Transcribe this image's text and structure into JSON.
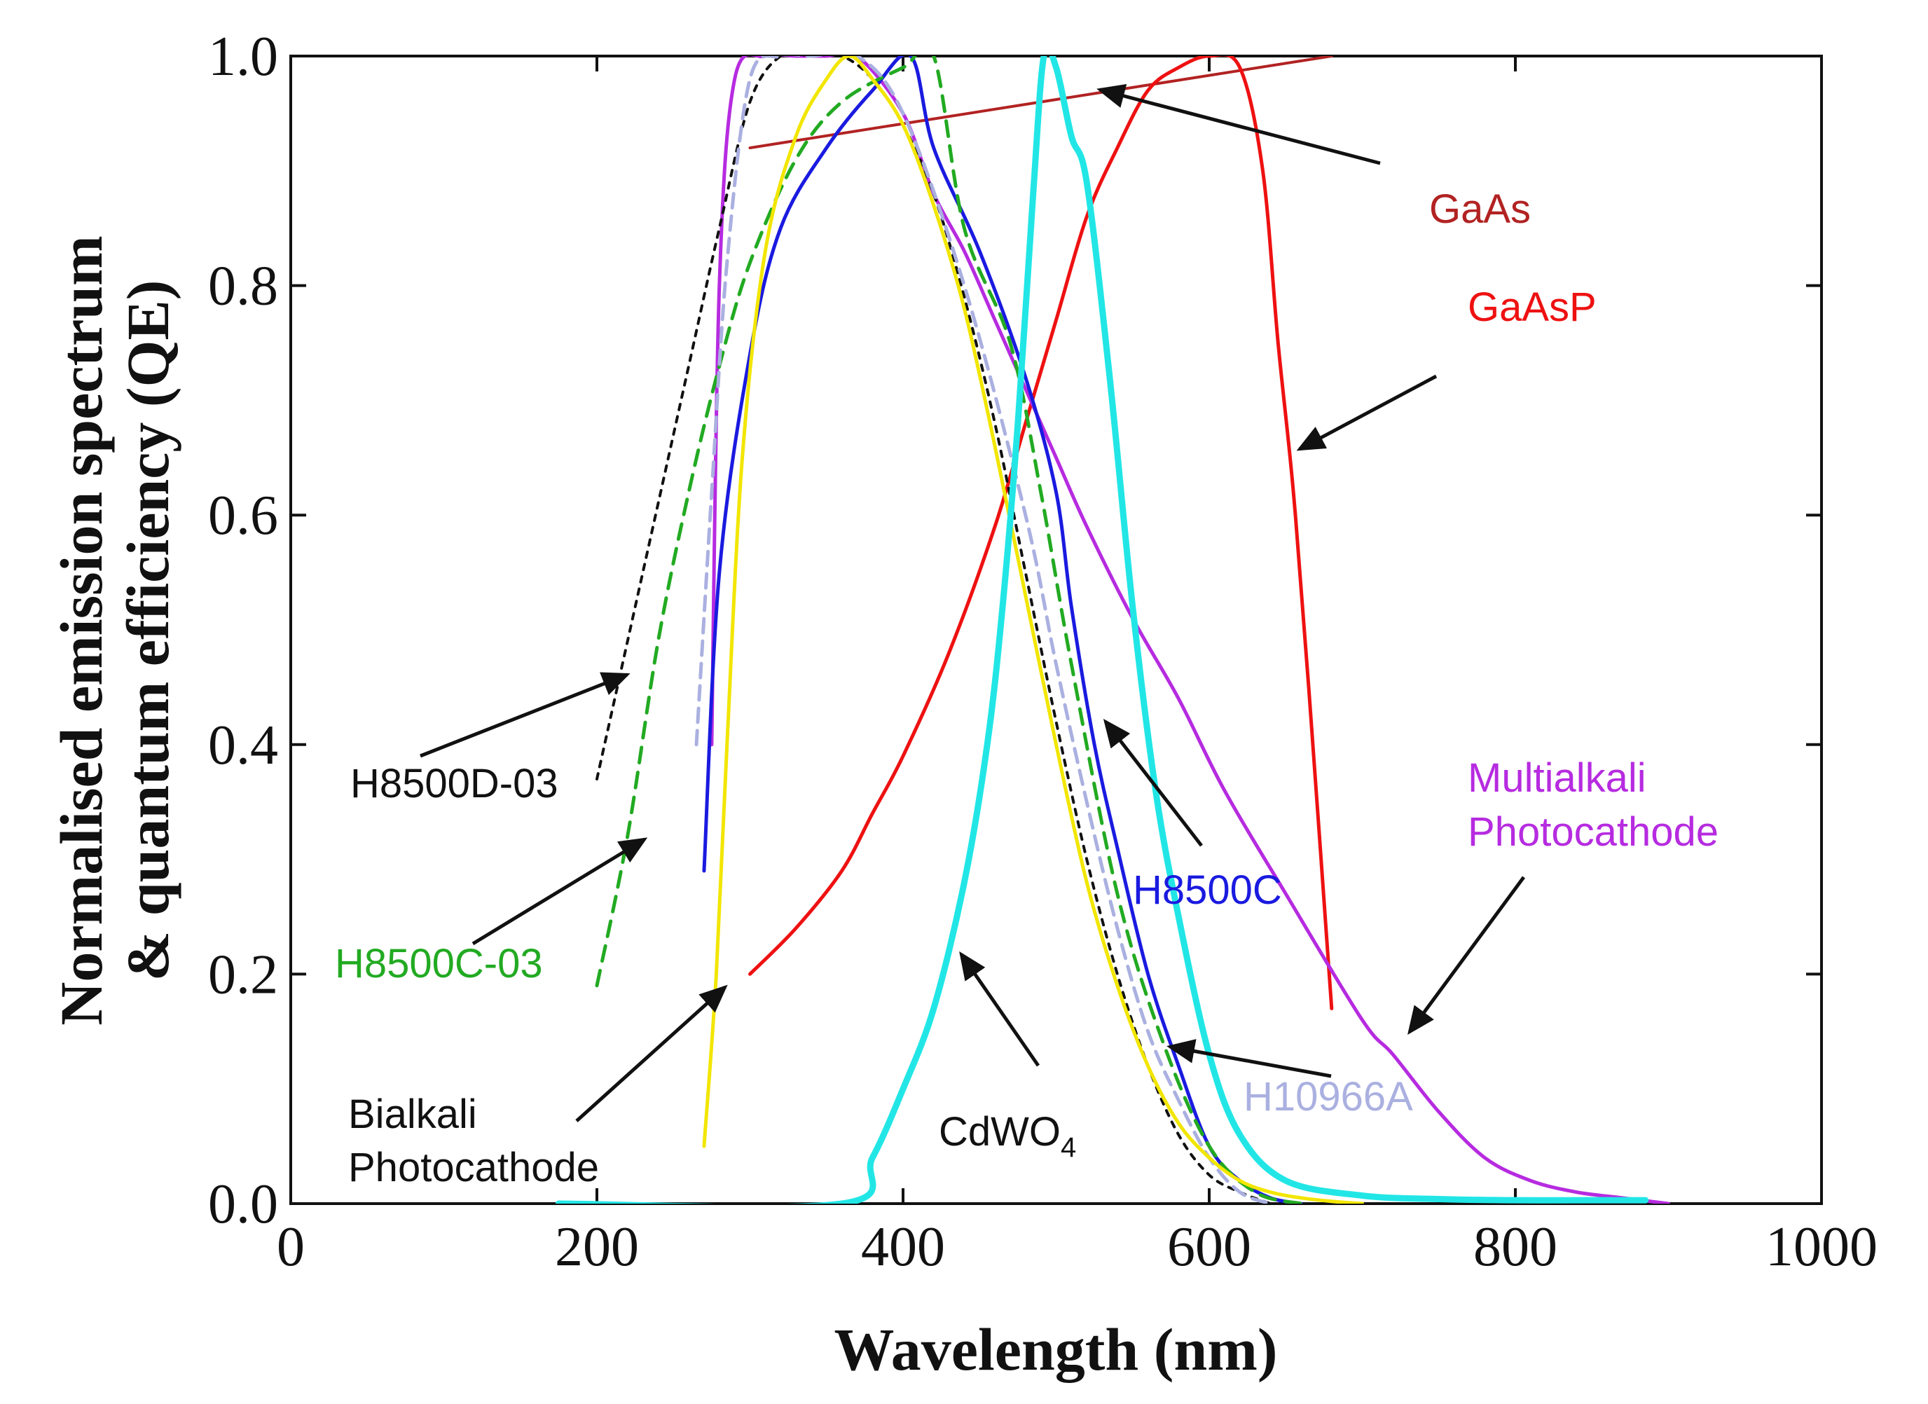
{
  "chart_data": {
    "type": "line",
    "title": "",
    "xlabel": "Wavelength (nm)",
    "ylabel_line1": "Normalised emission spectrum",
    "ylabel_line2": "& quantum efficiency (QE)",
    "xlim": [
      0,
      1000
    ],
    "ylim": [
      0,
      1
    ],
    "x_ticks": [
      "0",
      "200",
      "400",
      "600",
      "800",
      "1000"
    ],
    "y_ticks": [
      "0.0",
      "0.2",
      "0.4",
      "0.6",
      "0.8",
      "1.0"
    ],
    "grid": false,
    "legend": "none (series labelled directly with arrows)",
    "series": [
      {
        "name": "GaAs",
        "color": "#b22222",
        "width": 4,
        "dash": "",
        "x": [
          300,
          680
        ],
        "y": [
          0.92,
          1.0
        ]
      },
      {
        "name": "GaAsP",
        "color": "#ee1111",
        "width": 5,
        "dash": "",
        "x": [
          300,
          330,
          360,
          380,
          400,
          430,
          460,
          480,
          500,
          520,
          540,
          560,
          580,
          600,
          620,
          635,
          645,
          655,
          665,
          680
        ],
        "y": [
          0.2,
          0.24,
          0.29,
          0.34,
          0.39,
          0.48,
          0.59,
          0.68,
          0.77,
          0.86,
          0.92,
          0.97,
          0.99,
          1.0,
          0.99,
          0.9,
          0.75,
          0.62,
          0.45,
          0.17
        ]
      },
      {
        "name": "Multialkali Photocathode",
        "color": "#b62be0",
        "width": 5,
        "dash": "",
        "x": [
          275,
          280,
          290,
          310,
          330,
          350,
          370,
          400,
          420,
          440,
          460,
          480,
          500,
          520,
          550,
          580,
          610,
          650,
          700,
          720,
          750,
          780,
          810,
          840,
          870,
          900
        ],
        "y": [
          0.4,
          0.8,
          0.98,
          1.0,
          1.0,
          1.0,
          1.0,
          0.95,
          0.88,
          0.83,
          0.77,
          0.71,
          0.65,
          0.59,
          0.51,
          0.44,
          0.36,
          0.27,
          0.16,
          0.13,
          0.08,
          0.04,
          0.02,
          0.01,
          0.005,
          0.0
        ]
      },
      {
        "name": "H8500C",
        "color": "#1a1ae0",
        "width": 5,
        "dash": "",
        "x": [
          270,
          280,
          300,
          320,
          350,
          380,
          405,
          420,
          450,
          480,
          500,
          510,
          525,
          540,
          560,
          580,
          600,
          620,
          640,
          660
        ],
        "y": [
          0.29,
          0.55,
          0.74,
          0.85,
          0.92,
          0.97,
          1.0,
          0.92,
          0.83,
          0.72,
          0.62,
          0.52,
          0.4,
          0.31,
          0.2,
          0.12,
          0.05,
          0.02,
          0.005,
          0.0
        ]
      },
      {
        "name": "H8500C-03",
        "color": "#22aa22",
        "width": 5,
        "dash": "22,14",
        "x": [
          200,
          220,
          240,
          260,
          280,
          300,
          330,
          360,
          400,
          420,
          440,
          470,
          490,
          510,
          540,
          570,
          600,
          630,
          660
        ],
        "y": [
          0.19,
          0.32,
          0.49,
          0.62,
          0.73,
          0.82,
          0.91,
          0.96,
          0.99,
          1.0,
          0.85,
          0.75,
          0.62,
          0.47,
          0.27,
          0.14,
          0.05,
          0.01,
          0.0
        ]
      },
      {
        "name": "H8500D-03",
        "color": "#111111",
        "width": 4,
        "dash": "8,10",
        "x": [
          200,
          220,
          240,
          260,
          280,
          300,
          320,
          340,
          360,
          380,
          400,
          420,
          440,
          460,
          480,
          500,
          520,
          540,
          560,
          580,
          600,
          620,
          640
        ],
        "y": [
          0.37,
          0.49,
          0.61,
          0.73,
          0.85,
          0.96,
          1.0,
          1.0,
          1.0,
          0.98,
          0.94,
          0.88,
          0.79,
          0.68,
          0.55,
          0.42,
          0.3,
          0.2,
          0.12,
          0.06,
          0.025,
          0.01,
          0.0
        ]
      },
      {
        "name": "H10966A",
        "color": "#aab0e0",
        "width": 5,
        "dash": "20,12",
        "x": [
          265,
          275,
          285,
          300,
          320,
          340,
          370,
          400,
          440,
          480,
          500,
          520,
          540,
          560,
          580,
          600,
          620,
          640
        ],
        "y": [
          0.4,
          0.62,
          0.82,
          0.98,
          1.0,
          1.0,
          1.0,
          0.95,
          0.8,
          0.6,
          0.47,
          0.35,
          0.24,
          0.15,
          0.09,
          0.04,
          0.01,
          0.0
        ]
      },
      {
        "name": "Bialkali Photocathode",
        "color": "#f2e600",
        "width": 5,
        "dash": "",
        "x": [
          270,
          278,
          285,
          295,
          310,
          330,
          350,
          365,
          380,
          400,
          420,
          440,
          460,
          480,
          500,
          520,
          540,
          560,
          580,
          600,
          620,
          640,
          660,
          680,
          700
        ],
        "y": [
          0.05,
          0.2,
          0.4,
          0.65,
          0.83,
          0.93,
          0.98,
          1.0,
          0.98,
          0.94,
          0.87,
          0.78,
          0.66,
          0.53,
          0.4,
          0.28,
          0.19,
          0.12,
          0.07,
          0.04,
          0.02,
          0.01,
          0.005,
          0.002,
          0.0
        ]
      },
      {
        "name": "CdWO₄",
        "color": "#22e6e6",
        "width": 9,
        "dash": "",
        "x": [
          175,
          360,
          380,
          400,
          420,
          440,
          455,
          465,
          475,
          485,
          492,
          500,
          510,
          520,
          535,
          550,
          565,
          580,
          600,
          620,
          650,
          700,
          750,
          800,
          850,
          885
        ],
        "y": [
          0.0,
          0.0,
          0.04,
          0.1,
          0.17,
          0.28,
          0.4,
          0.52,
          0.68,
          0.88,
          1.0,
          0.99,
          0.93,
          0.89,
          0.72,
          0.52,
          0.36,
          0.25,
          0.13,
          0.06,
          0.02,
          0.007,
          0.004,
          0.003,
          0.003,
          0.003
        ]
      }
    ],
    "labels": [
      {
        "text": "GaAs",
        "color": "#b22222"
      },
      {
        "text": "GaAsP",
        "color": "#ee1111"
      },
      {
        "text": "Multialkali",
        "color": "#b62be0"
      },
      {
        "text": "Photocathode",
        "color": "#b62be0"
      },
      {
        "text": "H8500C",
        "color": "#1a1ae0"
      },
      {
        "text": "H8500D-03",
        "color": "#111111"
      },
      {
        "text": "H8500C-03",
        "color": "#22aa22"
      },
      {
        "text": "Bialkali",
        "color": "#111111"
      },
      {
        "text": "Photocathode",
        "color": "#111111"
      },
      {
        "text": "CdWO",
        "sub": "4",
        "color": "#111111"
      },
      {
        "text": "H10966A",
        "color": "#aab0e0"
      }
    ],
    "arrow_color": "#111111"
  }
}
